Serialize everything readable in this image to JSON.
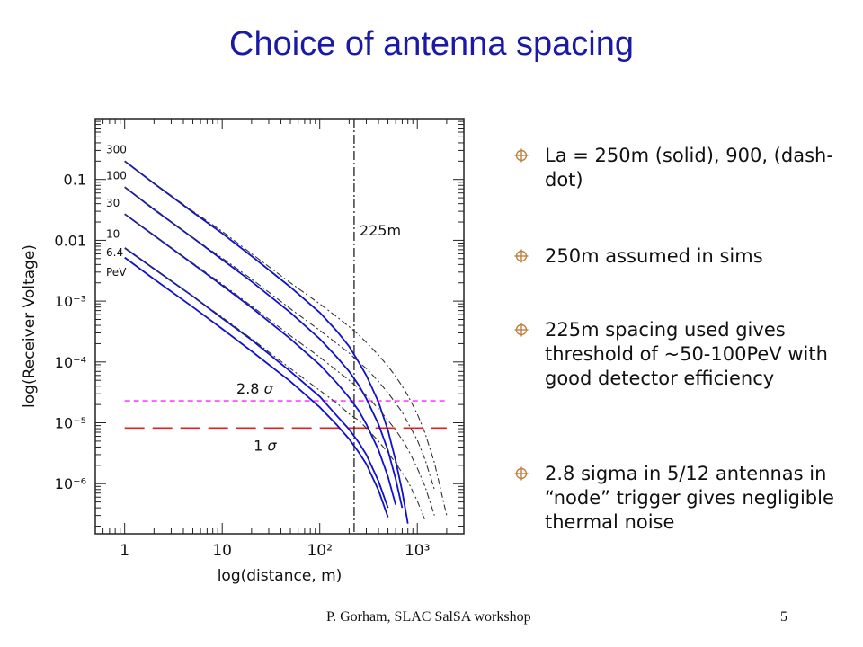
{
  "slide": {
    "title": "Choice of antenna spacing",
    "footer": "P. Gorham, SLAC SalSA workshop",
    "page_number": "5",
    "bullet_icon": "crosshair-circle-icon",
    "bullets": [
      "La = 250m (solid), 900, (dash-dot)",
      "250m assumed in sims",
      "225m spacing used gives threshold of ~50-100PeV with good detector efficiency",
      "2.8 sigma in 5/12 antennas in “node” trigger gives negligible thermal noise"
    ]
  },
  "colors": {
    "title": "#1a1aa6",
    "solid_curves": "#1010d0",
    "dashdot_curves": "#333333",
    "line_2_8_sigma": "#ff44ff",
    "line_1_sigma": "#dd2222",
    "bullet_icon": "#c08040"
  },
  "chart_data": {
    "type": "line",
    "xlabel": "log(distance, m)",
    "ylabel": "log(Receiver Voltage)",
    "x_scale": "log",
    "y_scale": "log",
    "xlim": [
      0.5,
      3000
    ],
    "ylim": [
      1.5e-07,
      1.0
    ],
    "x_ticks": [
      1,
      10,
      100,
      1000
    ],
    "x_tick_labels": [
      "1",
      "10",
      "10²",
      "10³"
    ],
    "y_ticks": [
      0.1,
      0.01,
      0.001,
      0.0001,
      1e-05,
      1e-06
    ],
    "y_tick_labels": [
      "0.1",
      "0.01",
      "10⁻³",
      "10⁻⁴",
      "10⁻⁵",
      "10⁻⁶"
    ],
    "energy_labels": [
      "300",
      "100",
      "30",
      "10",
      "6.4",
      "PeV"
    ],
    "x": [
      1,
      2,
      5,
      10,
      20,
      50,
      100,
      150,
      200,
      250,
      300,
      400,
      500,
      600,
      700,
      800,
      1000,
      1200,
      1500,
      2000
    ],
    "series": [
      {
        "style": "solid",
        "energy": "300",
        "values": [
          0.2,
          0.086,
          0.029,
          0.013,
          0.0055,
          0.0017,
          0.00065,
          0.00032,
          0.00018,
          0.0001,
          6e-05,
          2.2e-05,
          7.5e-06,
          2.4e-06,
          7.5e-07,
          2.2e-07,
          null,
          null,
          null,
          null
        ]
      },
      {
        "style": "solid",
        "energy": "100",
        "values": [
          0.075,
          0.032,
          0.011,
          0.0048,
          0.0021,
          0.00065,
          0.00024,
          0.00012,
          7e-05,
          4.2e-05,
          2.5e-05,
          9.5e-06,
          3.5e-06,
          1.2e-06,
          4e-07,
          null,
          null,
          null,
          null,
          null
        ]
      },
      {
        "style": "solid",
        "energy": "30",
        "values": [
          0.027,
          0.012,
          0.0041,
          0.0018,
          0.00078,
          0.00024,
          9e-05,
          4.5e-05,
          2.6e-05,
          1.6e-05,
          9.5e-06,
          3.6e-06,
          1.3e-06,
          4.5e-07,
          null,
          null,
          null,
          null,
          null,
          null
        ]
      },
      {
        "style": "solid",
        "energy": "10",
        "values": [
          0.0075,
          0.0034,
          0.0012,
          0.00052,
          0.00023,
          7e-05,
          2.7e-05,
          1.3e-05,
          7.8e-06,
          4.8e-06,
          3e-06,
          1.1e-06,
          4e-07,
          null,
          null,
          null,
          null,
          null,
          null,
          null
        ]
      },
      {
        "style": "solid",
        "energy": "6.4",
        "values": [
          0.0052,
          0.0023,
          0.0008,
          0.00035,
          0.00015,
          4.8e-05,
          1.8e-05,
          9.2e-06,
          5.4e-06,
          3.3e-06,
          2.1e-06,
          7.8e-07,
          2.8e-07,
          null,
          null,
          null,
          null,
          null,
          null,
          null
        ]
      },
      {
        "style": "dashdot",
        "energy": "300",
        "values": [
          0.2,
          0.087,
          0.03,
          0.014,
          0.006,
          0.002,
          0.0009,
          0.00055,
          0.00038,
          0.00028,
          0.00021,
          0.00013,
          8.5e-05,
          5.8e-05,
          4e-05,
          2.8e-05,
          1.4e-05,
          6.8e-06,
          2.2e-06,
          3e-07
        ]
      },
      {
        "style": "dashdot",
        "energy": "100",
        "values": [
          0.075,
          0.033,
          0.011,
          0.0051,
          0.0023,
          0.00075,
          0.00033,
          0.0002,
          0.00014,
          0.0001,
          7.8e-05,
          4.8e-05,
          3.1e-05,
          2.1e-05,
          1.5e-05,
          1e-05,
          5.2e-06,
          2.5e-06,
          8e-07,
          null
        ]
      },
      {
        "style": "dashdot",
        "energy": "30",
        "values": [
          0.027,
          0.012,
          0.0042,
          0.0019,
          0.00083,
          0.00027,
          0.00012,
          7.2e-05,
          5e-05,
          3.7e-05,
          2.8e-05,
          1.7e-05,
          1.1e-05,
          7.6e-06,
          5.3e-06,
          3.7e-06,
          1.8e-06,
          9e-07,
          3e-07,
          null
        ]
      },
      {
        "style": "dashdot",
        "energy": "10",
        "values": [
          0.0075,
          0.0034,
          0.0012,
          0.00054,
          0.00024,
          7.8e-05,
          3.4e-05,
          2.1e-05,
          1.4e-05,
          1.1e-05,
          8.2e-06,
          5e-06,
          3.2e-06,
          2.2e-06,
          1.5e-06,
          1.1e-06,
          5.2e-07,
          2.5e-07,
          null,
          null
        ]
      }
    ],
    "threshold_lines": [
      {
        "label": "2.8",
        "sigma_symbol": "σ",
        "value": 2.3e-05,
        "style": "short-dash"
      },
      {
        "label": "1",
        "sigma_symbol": "σ",
        "value": 8.2e-06,
        "style": "long-dash"
      }
    ],
    "vertical_line": {
      "x": 225,
      "label": "225m",
      "style": "dashdot"
    }
  }
}
